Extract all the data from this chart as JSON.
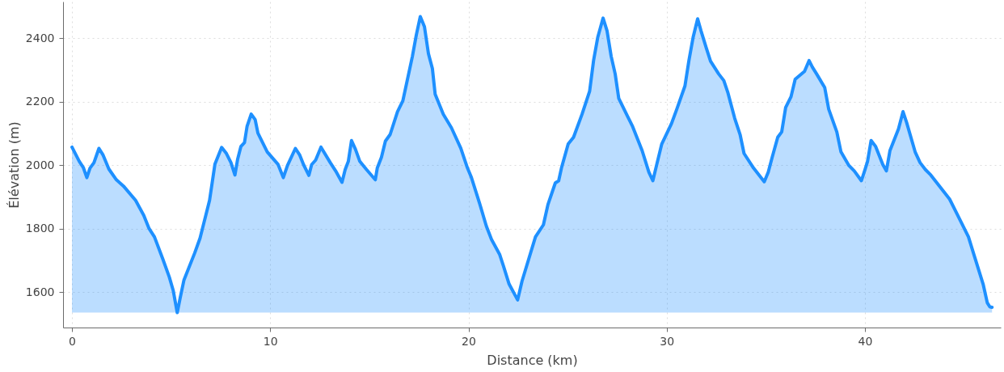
{
  "chart_data": {
    "type": "area",
    "xlabel": "Distance (km)",
    "ylabel": "Élévation (m)",
    "x": [
      0,
      0.37,
      0.57,
      0.75,
      0.91,
      1.11,
      1.36,
      1.56,
      1.86,
      2.24,
      2.6,
      3.21,
      3.62,
      3.89,
      4.16,
      4.57,
      4.91,
      5.11,
      5.31,
      5.45,
      5.65,
      6.19,
      6.46,
      6.94,
      7.21,
      7.55,
      7.79,
      8.02,
      8.22,
      8.36,
      8.52,
      8.7,
      8.83,
      9.04,
      9.24,
      9.38,
      9.85,
      10.39,
      10.66,
      10.87,
      11.27,
      11.48,
      11.68,
      11.95,
      12.09,
      12.29,
      12.56,
      13.03,
      13.3,
      13.62,
      13.78,
      13.94,
      14.1,
      14.3,
      14.52,
      14.86,
      15.3,
      15.4,
      15.61,
      15.81,
      16.05,
      16.42,
      16.69,
      17.17,
      17.37,
      17.57,
      17.78,
      17.98,
      18.18,
      18.32,
      18.73,
      19.14,
      19.61,
      19.95,
      20.15,
      20.56,
      20.9,
      21.16,
      21.57,
      21.77,
      22.05,
      22.48,
      22.7,
      23.38,
      23.78,
      24.01,
      24.38,
      24.55,
      24.69,
      25.03,
      25.3,
      25.73,
      26.11,
      26.31,
      26.52,
      26.79,
      26.99,
      27.2,
      27.4,
      27.58,
      28.01,
      28.28,
      28.76,
      29.1,
      29.3,
      29.5,
      29.75,
      30.24,
      30.51,
      30.92,
      31.12,
      31.33,
      31.56,
      31.73,
      32,
      32.21,
      32.62,
      32.88,
      33.09,
      33.43,
      33.7,
      33.9,
      34.38,
      34.92,
      35.12,
      35.32,
      35.6,
      35.8,
      36,
      36.27,
      36.48,
      36.95,
      37.18,
      37.35,
      37.56,
      37.97,
      38.17,
      38.58,
      38.79,
      39.19,
      39.46,
      39.82,
      40,
      40.13,
      40.31,
      40.54,
      40.9,
      41.08,
      41.26,
      41.69,
      41.92,
      42.1,
      42.53,
      42.78,
      43.05,
      43.32,
      43.72,
      44.27,
      44.88,
      45.22,
      45.49,
      45.96,
      46.17,
      46.3,
      46.41
    ],
    "series": [
      {
        "color": "#1e90ff",
        "values": [
          2057,
          2012,
          1993,
          1961,
          1991,
          2008,
          2053,
          2033,
          1988,
          1954,
          1934,
          1889,
          1842,
          1800,
          1774,
          1706,
          1647,
          1604,
          1535,
          1579,
          1638,
          1723,
          1770,
          1889,
          2003,
          2056,
          2037,
          2008,
          1969,
          2020,
          2059,
          2071,
          2122,
          2161,
          2144,
          2101,
          2042,
          2003,
          1961,
          1999,
          2053,
          2033,
          2002,
          1968,
          2002,
          2016,
          2057,
          2008,
          1982,
          1946,
          1986,
          2012,
          2078,
          2050,
          2012,
          1986,
          1954,
          1991,
          2025,
          2076,
          2097,
          2169,
          2203,
          2343,
          2411,
          2469,
          2437,
          2352,
          2305,
          2224,
          2161,
          2118,
          2054,
          1991,
          1961,
          1880,
          1808,
          1766,
          1719,
          1681,
          1625,
          1575,
          1634,
          1774,
          1812,
          1876,
          1944,
          1951,
          1991,
          2067,
          2088,
          2161,
          2233,
          2330,
          2403,
          2464,
          2424,
          2343,
          2288,
          2211,
          2156,
          2122,
          2046,
          1978,
          1951,
          2003,
          2067,
          2131,
          2177,
          2250,
          2330,
          2403,
          2462,
          2424,
          2369,
          2328,
          2288,
          2267,
          2228,
          2148,
          2097,
          2037,
          1991,
          1948,
          1978,
          2025,
          2088,
          2105,
          2182,
          2216,
          2271,
          2296,
          2330,
          2309,
          2288,
          2245,
          2177,
          2105,
          2042,
          1999,
          1982,
          1951,
          1986,
          2012,
          2078,
          2059,
          2002,
          1982,
          2046,
          2114,
          2169,
          2135,
          2042,
          2008,
          1986,
          1969,
          1937,
          1893,
          1817,
          1774,
          1719,
          1625,
          1566,
          1553,
          1552
        ]
      }
    ],
    "xlim": [
      -0.45,
      46.85
    ],
    "ylim": [
      1488,
      2516
    ],
    "xticks": [
      0,
      10,
      20,
      30,
      40
    ],
    "yticks": [
      1600,
      1800,
      2000,
      2200,
      2400
    ],
    "grid": true
  }
}
